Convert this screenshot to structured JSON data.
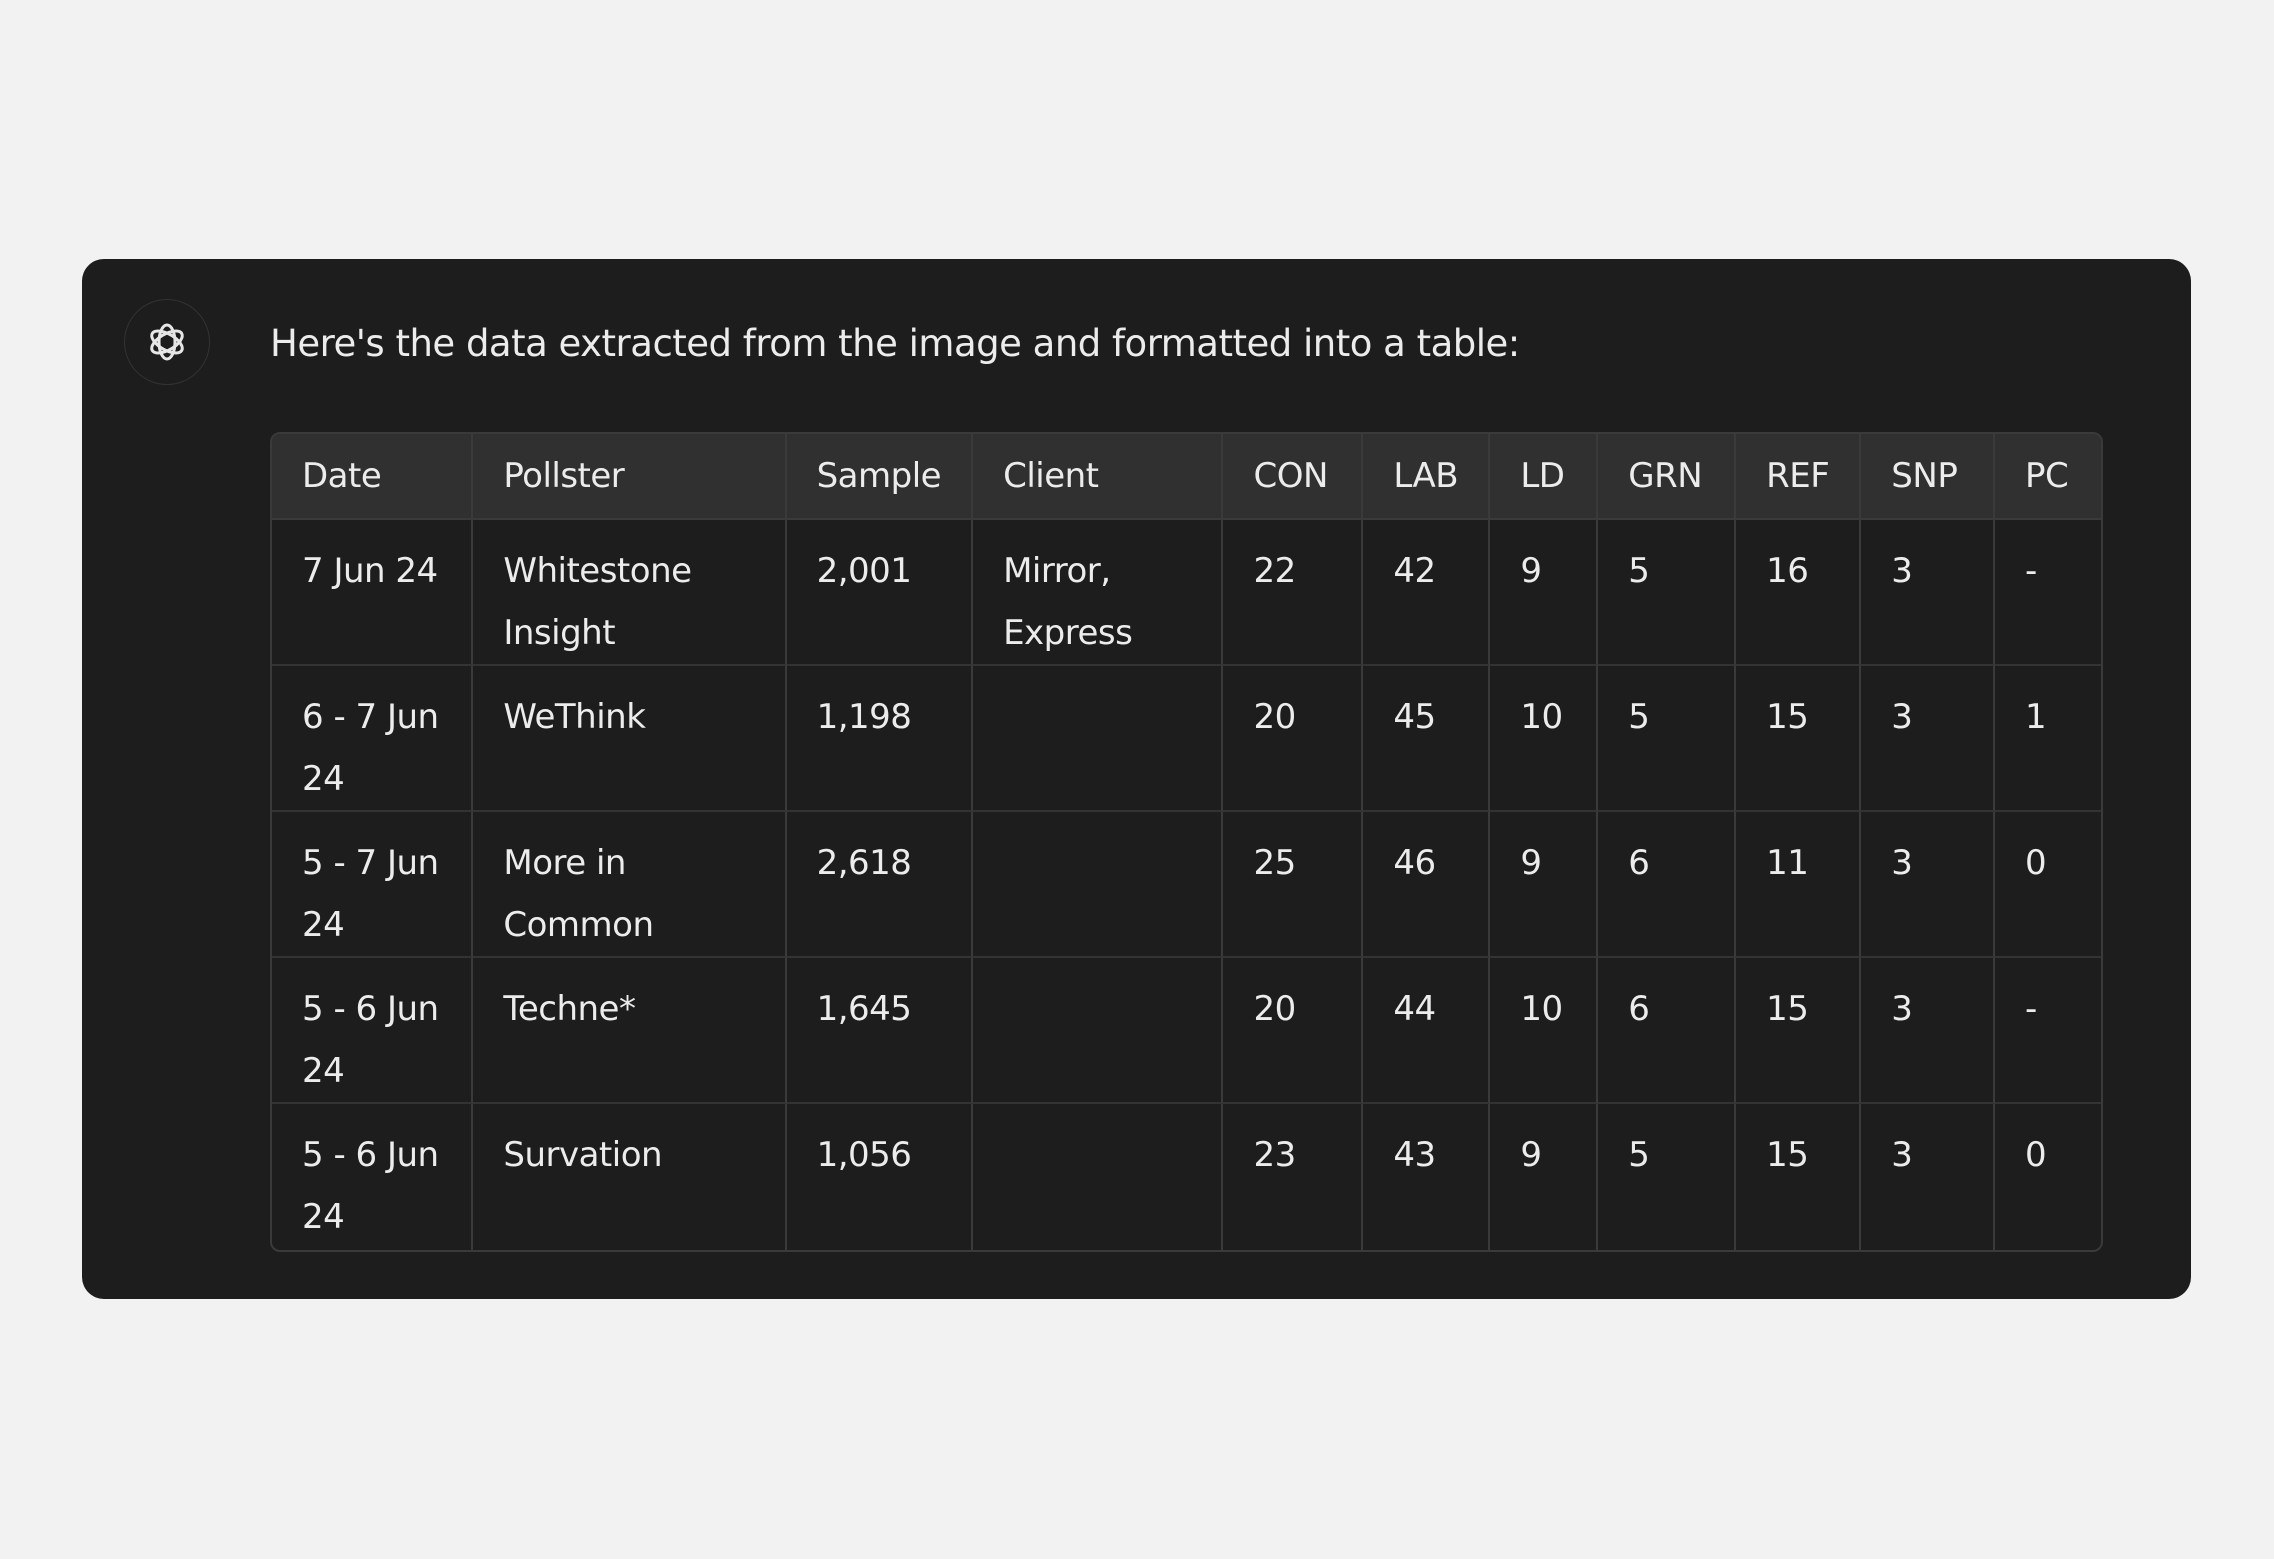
{
  "message": "Here's the data extracted from the image and formatted into a table:",
  "avatar_icon": "openai-logo-icon",
  "table": {
    "headers": [
      "Date",
      "Pollster",
      "Sample",
      "Client",
      "CON",
      "LAB",
      "LD",
      "GRN",
      "REF",
      "SNP",
      "PC"
    ],
    "rows": [
      [
        "7 Jun 24",
        "Whitestone Insight",
        "2,001",
        "Mirror, Express",
        "22",
        "42",
        "9",
        "5",
        "16",
        "3",
        "-"
      ],
      [
        "6 - 7 Jun 24",
        "WeThink",
        "1,198",
        "",
        "20",
        "45",
        "10",
        "5",
        "15",
        "3",
        "1"
      ],
      [
        "5 - 7 Jun 24",
        "More in Common",
        "2,618",
        "",
        "25",
        "46",
        "9",
        "6",
        "11",
        "3",
        "0"
      ],
      [
        "5 - 6 Jun 24",
        "Techne*",
        "1,645",
        "",
        "20",
        "44",
        "10",
        "6",
        "15",
        "3",
        "-"
      ],
      [
        "5 - 6 Jun 24",
        "Survation",
        "1,056",
        "",
        "23",
        "43",
        "9",
        "5",
        "15",
        "3",
        "0"
      ]
    ]
  }
}
